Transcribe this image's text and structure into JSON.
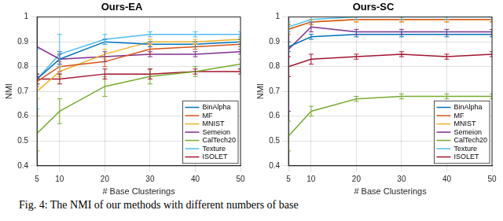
{
  "chart_data": [
    {
      "type": "line",
      "title": "Ours-EA",
      "x_label": "# Base Clusterings",
      "y_label": "NMI",
      "x": [
        5,
        10,
        20,
        30,
        40,
        50
      ],
      "xlim": [
        5,
        50
      ],
      "xticks": [
        5,
        10,
        20,
        30,
        40,
        50
      ],
      "ylim": [
        0.4,
        1
      ],
      "yticks": [
        0.4,
        0.5,
        0.6,
        0.7,
        0.8,
        0.9,
        1
      ],
      "grid": true,
      "legend": "lower right",
      "line_style": "solid",
      "marker": "none",
      "series": [
        {
          "name": "BinAlpha",
          "color": "#0072BD",
          "values": [
            0.75,
            0.83,
            0.9,
            0.89,
            0.89,
            0.9
          ],
          "errors": [
            0.02,
            0.03,
            0.01,
            0.01,
            0.01,
            0.01
          ]
        },
        {
          "name": "MF",
          "color": "#D95319",
          "values": [
            0.74,
            0.8,
            0.82,
            0.87,
            0.88,
            0.89
          ],
          "errors": [
            0.02,
            0.02,
            0.02,
            0.02,
            0.01,
            0.01
          ]
        },
        {
          "name": "MNIST",
          "color": "#EDB120",
          "values": [
            0.7,
            0.78,
            0.85,
            0.9,
            0.9,
            0.91
          ],
          "errors": [
            0.03,
            0.02,
            0.02,
            0.01,
            0.01,
            0.01
          ]
        },
        {
          "name": "Semeion",
          "color": "#7E2F8E",
          "values": [
            0.88,
            0.83,
            0.84,
            0.85,
            0.85,
            0.86
          ],
          "errors": [
            0.12,
            0.02,
            0.02,
            0.01,
            0.01,
            0.01
          ]
        },
        {
          "name": "CalTech20",
          "color": "#77AC30",
          "values": [
            0.53,
            0.62,
            0.72,
            0.76,
            0.78,
            0.81
          ],
          "errors": [
            0.07,
            0.05,
            0.04,
            0.03,
            0.02,
            0.02
          ]
        },
        {
          "name": "Texture",
          "color": "#4DBEEE",
          "values": [
            0.75,
            0.85,
            0.91,
            0.93,
            0.93,
            0.93
          ],
          "errors": [
            0.12,
            0.08,
            0.02,
            0.01,
            0.01,
            0.01
          ]
        },
        {
          "name": "ISOLET",
          "color": "#A2142F",
          "values": [
            0.75,
            0.75,
            0.77,
            0.77,
            0.78,
            0.78
          ],
          "errors": [
            0.02,
            0.02,
            0.02,
            0.02,
            0.01,
            0.01
          ]
        }
      ]
    },
    {
      "type": "line",
      "title": "Ours-SC",
      "x_label": "# Base Clusterings",
      "y_label": "NMI",
      "x": [
        5,
        10,
        20,
        30,
        40,
        50
      ],
      "xlim": [
        5,
        50
      ],
      "xticks": [
        5,
        10,
        20,
        30,
        40,
        50
      ],
      "ylim": [
        0.4,
        1
      ],
      "yticks": [
        0.4,
        0.5,
        0.6,
        0.7,
        0.8,
        0.9,
        1
      ],
      "grid": true,
      "legend": "lower right",
      "line_style": "solid",
      "marker": "none",
      "series": [
        {
          "name": "BinAlpha",
          "color": "#0072BD",
          "values": [
            0.88,
            0.92,
            0.93,
            0.93,
            0.93,
            0.93
          ],
          "errors": [
            0.02,
            0.01,
            0.01,
            0.01,
            0.01,
            0.01
          ]
        },
        {
          "name": "MF",
          "color": "#D95319",
          "values": [
            0.95,
            0.98,
            0.99,
            0.99,
            0.99,
            0.99
          ],
          "errors": [
            0.02,
            0.01,
            0.01,
            0.01,
            0.01,
            0.01
          ]
        },
        {
          "name": "MNIST",
          "color": "#EDB120",
          "values": [
            0.95,
            0.98,
            0.99,
            0.99,
            0.99,
            0.99
          ],
          "errors": [
            0.02,
            0.01,
            0.01,
            0.01,
            0.01,
            0.01
          ]
        },
        {
          "name": "Semeion",
          "color": "#7E2F8E",
          "values": [
            0.87,
            0.96,
            0.94,
            0.94,
            0.94,
            0.94
          ],
          "errors": [
            0.25,
            0.02,
            0.01,
            0.01,
            0.01,
            0.01
          ]
        },
        {
          "name": "CalTech20",
          "color": "#77AC30",
          "values": [
            0.52,
            0.62,
            0.67,
            0.68,
            0.68,
            0.68
          ],
          "errors": [
            0.06,
            0.02,
            0.01,
            0.01,
            0.01,
            0.01
          ]
        },
        {
          "name": "Texture",
          "color": "#4DBEEE",
          "values": [
            0.96,
            0.99,
            1.0,
            1.0,
            1.0,
            1.0
          ],
          "errors": [
            0.02,
            0.01,
            0.01,
            0.01,
            0.01,
            0.01
          ]
        },
        {
          "name": "ISOLET",
          "color": "#A2142F",
          "values": [
            0.8,
            0.83,
            0.84,
            0.85,
            0.84,
            0.85
          ],
          "errors": [
            0.04,
            0.02,
            0.01,
            0.01,
            0.01,
            0.01
          ]
        }
      ]
    }
  ],
  "caption": "Fig. 4: The NMI of our methods with different numbers of base"
}
